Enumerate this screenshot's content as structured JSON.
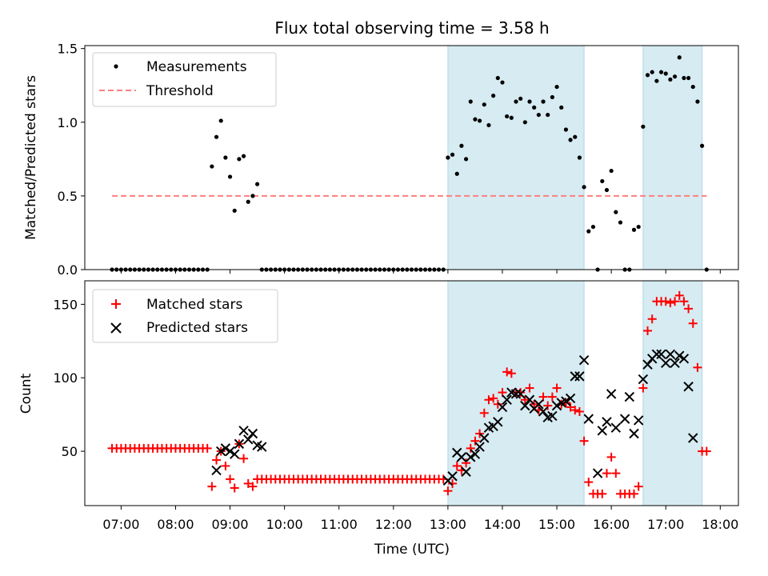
{
  "figure_title": "Flux total observing time = 3.58 h",
  "colors": {
    "measurement": "#000000",
    "threshold": "#ff7f7f",
    "matched": "#ff0000",
    "predicted": "#000000",
    "span_fill": "#add8e6"
  },
  "chart_data": [
    {
      "type": "scatter",
      "name": "ratio",
      "xlabel": "",
      "ylabel": "Matched/Predicted stars",
      "xlim": [
        "06:20",
        "18:20"
      ],
      "ylim": [
        0,
        1.52
      ],
      "yticks": [
        "0.0",
        "0.5",
        "1.0",
        "1.5"
      ],
      "ytick_values": [
        0,
        0.5,
        1.0,
        1.5
      ],
      "legend": {
        "placement": "top-left",
        "entries": [
          "Measurements",
          "Threshold"
        ]
      },
      "threshold": {
        "label": "Threshold",
        "value": 0.5,
        "from": "06:50",
        "to": "17:45"
      },
      "shaded_spans": [
        [
          "13:00",
          "15:30"
        ],
        [
          "16:35",
          "17:40"
        ]
      ],
      "series": [
        {
          "name": "Measurements",
          "x": [
            "06:50",
            "06:55",
            "07:00",
            "07:05",
            "07:10",
            "07:15",
            "07:20",
            "07:25",
            "07:30",
            "07:35",
            "07:40",
            "07:45",
            "07:50",
            "07:55",
            "08:00",
            "08:05",
            "08:10",
            "08:15",
            "08:20",
            "08:25",
            "08:30",
            "08:35",
            "08:40",
            "08:45",
            "08:50",
            "08:55",
            "09:00",
            "09:05",
            "09:10",
            "09:15",
            "09:20",
            "09:25",
            "09:30",
            "09:35",
            "09:40",
            "09:45",
            "09:50",
            "09:55",
            "10:00",
            "10:05",
            "10:10",
            "10:15",
            "10:20",
            "10:25",
            "10:30",
            "10:35",
            "10:40",
            "10:45",
            "10:50",
            "10:55",
            "11:00",
            "11:05",
            "11:10",
            "11:15",
            "11:20",
            "11:25",
            "11:30",
            "11:35",
            "11:40",
            "11:45",
            "11:50",
            "11:55",
            "12:00",
            "12:05",
            "12:10",
            "12:15",
            "12:20",
            "12:25",
            "12:30",
            "12:35",
            "12:40",
            "12:45",
            "12:50",
            "12:55",
            "13:00",
            "13:05",
            "13:10",
            "13:15",
            "13:20",
            "13:25",
            "13:30",
            "13:35",
            "13:40",
            "13:45",
            "13:50",
            "13:55",
            "14:00",
            "14:05",
            "14:10",
            "14:15",
            "14:20",
            "14:25",
            "14:30",
            "14:35",
            "14:40",
            "14:45",
            "14:50",
            "14:55",
            "15:00",
            "15:05",
            "15:10",
            "15:15",
            "15:20",
            "15:25",
            "15:30",
            "15:35",
            "15:40",
            "15:45",
            "15:50",
            "15:55",
            "16:00",
            "16:05",
            "16:10",
            "16:15",
            "16:20",
            "16:25",
            "16:30",
            "16:35",
            "16:40",
            "16:45",
            "16:50",
            "16:55",
            "17:00",
            "17:05",
            "17:10",
            "17:15",
            "17:20",
            "17:25",
            "17:30",
            "17:35",
            "17:40",
            "17:45"
          ],
          "y": [
            0,
            0,
            0,
            0,
            0,
            0,
            0,
            0,
            0,
            0,
            0,
            0,
            0,
            0,
            0,
            0,
            0,
            0,
            0,
            0,
            0,
            0,
            0.7,
            0.9,
            1.01,
            0.76,
            0.63,
            0.4,
            0.75,
            0.77,
            0.46,
            0.5,
            0.58,
            0,
            0,
            0,
            0,
            0,
            0,
            0,
            0,
            0,
            0,
            0,
            0,
            0,
            0,
            0,
            0,
            0,
            0,
            0,
            0,
            0,
            0,
            0,
            0,
            0,
            0,
            0,
            0,
            0,
            0,
            0,
            0,
            0,
            0,
            0,
            0,
            0,
            0,
            0,
            0,
            0,
            0.76,
            0.78,
            0.65,
            0.84,
            0.75,
            1.14,
            1.02,
            1.01,
            1.12,
            0.98,
            1.18,
            1.3,
            1.27,
            1.04,
            1.03,
            1.14,
            1.16,
            1.0,
            1.14,
            1.1,
            1.05,
            1.14,
            1.05,
            1.17,
            1.24,
            1.1,
            0.95,
            0.88,
            0.9,
            0.76,
            0.56,
            0.26,
            0.29,
            0,
            0.6,
            0.54,
            0.67,
            0.39,
            0.32,
            0,
            0,
            0.27,
            0.29,
            0.97,
            1.32,
            1.34,
            1.28,
            1.34,
            1.33,
            1.29,
            1.31,
            1.44,
            1.3,
            1.3,
            1.24,
            1.14,
            0.84,
            0
          ]
        }
      ]
    },
    {
      "type": "scatter",
      "name": "counts",
      "xlabel": "Time (UTC)",
      "ylabel": "Count",
      "xlim": [
        "06:20",
        "18:20"
      ],
      "ylim": [
        13,
        166
      ],
      "xticks": [
        "07:00",
        "08:00",
        "09:00",
        "10:00",
        "11:00",
        "12:00",
        "13:00",
        "14:00",
        "15:00",
        "16:00",
        "17:00",
        "18:00"
      ],
      "yticks": [
        "50",
        "100",
        "150"
      ],
      "ytick_values": [
        50,
        100,
        150
      ],
      "legend": {
        "placement": "top-left",
        "entries": [
          "Matched stars",
          "Predicted stars"
        ]
      },
      "shaded_spans": [
        [
          "13:00",
          "15:30"
        ],
        [
          "16:35",
          "17:40"
        ]
      ],
      "series": [
        {
          "name": "Matched stars",
          "marker": "plus",
          "x": [
            "06:50",
            "06:55",
            "07:00",
            "07:05",
            "07:10",
            "07:15",
            "07:20",
            "07:25",
            "07:30",
            "07:35",
            "07:40",
            "07:45",
            "07:50",
            "07:55",
            "08:00",
            "08:05",
            "08:10",
            "08:15",
            "08:20",
            "08:25",
            "08:30",
            "08:35",
            "08:40",
            "08:45",
            "08:50",
            "08:55",
            "09:00",
            "09:05",
            "09:10",
            "09:15",
            "09:20",
            "09:25",
            "09:30",
            "09:35",
            "09:40",
            "09:45",
            "09:50",
            "09:55",
            "10:00",
            "10:05",
            "10:10",
            "10:15",
            "10:20",
            "10:25",
            "10:30",
            "10:35",
            "10:40",
            "10:45",
            "10:50",
            "10:55",
            "11:00",
            "11:05",
            "11:10",
            "11:15",
            "11:20",
            "11:25",
            "11:30",
            "11:35",
            "11:40",
            "11:45",
            "11:50",
            "11:55",
            "12:00",
            "12:05",
            "12:10",
            "12:15",
            "12:20",
            "12:25",
            "12:30",
            "12:35",
            "12:40",
            "12:45",
            "12:50",
            "12:55",
            "13:00",
            "13:05",
            "13:10",
            "13:15",
            "13:20",
            "13:25",
            "13:30",
            "13:35",
            "13:40",
            "13:45",
            "13:50",
            "13:55",
            "14:00",
            "14:05",
            "14:10",
            "14:15",
            "14:20",
            "14:25",
            "14:30",
            "14:35",
            "14:40",
            "14:45",
            "14:50",
            "14:55",
            "15:00",
            "15:05",
            "15:10",
            "15:15",
            "15:20",
            "15:25",
            "15:30",
            "15:35",
            "15:40",
            "15:45",
            "15:50",
            "15:55",
            "16:00",
            "16:05",
            "16:10",
            "16:15",
            "16:20",
            "16:25",
            "16:30",
            "16:35",
            "16:40",
            "16:45",
            "16:50",
            "16:55",
            "17:00",
            "17:05",
            "17:10",
            "17:15",
            "17:20",
            "17:25",
            "17:30",
            "17:35",
            "17:40",
            "17:45"
          ],
          "y": [
            52,
            52,
            52,
            52,
            52,
            52,
            52,
            52,
            52,
            52,
            52,
            52,
            52,
            52,
            52,
            52,
            52,
            52,
            52,
            52,
            52,
            52,
            26,
            44,
            50,
            40,
            31,
            25,
            55,
            45,
            28,
            26,
            31,
            31,
            31,
            31,
            31,
            31,
            31,
            31,
            31,
            31,
            31,
            31,
            31,
            31,
            31,
            31,
            31,
            31,
            31,
            31,
            31,
            31,
            31,
            31,
            31,
            31,
            31,
            31,
            31,
            31,
            31,
            31,
            31,
            31,
            31,
            31,
            31,
            31,
            31,
            31,
            31,
            31,
            23,
            28,
            40,
            37,
            42,
            52,
            57,
            62,
            76,
            85,
            86,
            82,
            90,
            104,
            103,
            90,
            90,
            85,
            93,
            82,
            78,
            87,
            81,
            87,
            93,
            82,
            83,
            80,
            78,
            77,
            57,
            29,
            21,
            21,
            21,
            35,
            46,
            35,
            21,
            21,
            21,
            21,
            26,
            93,
            132,
            140,
            152,
            152,
            152,
            151,
            152,
            156,
            152,
            147,
            137,
            107,
            50,
            50
          ]
        },
        {
          "name": "Predicted stars",
          "marker": "x",
          "x": [
            "08:45",
            "08:50",
            "08:55",
            "09:00",
            "09:05",
            "09:10",
            "09:15",
            "09:20",
            "09:25",
            "09:30",
            "09:35",
            "13:00",
            "13:05",
            "13:10",
            "13:15",
            "13:20",
            "13:25",
            "13:30",
            "13:35",
            "13:40",
            "13:45",
            "13:50",
            "13:55",
            "14:00",
            "14:05",
            "14:10",
            "14:15",
            "14:20",
            "14:25",
            "14:30",
            "14:35",
            "14:40",
            "14:45",
            "14:50",
            "14:55",
            "15:00",
            "15:05",
            "15:10",
            "15:15",
            "15:20",
            "15:25",
            "15:30",
            "15:35",
            "15:40",
            "15:45",
            "15:50",
            "15:55",
            "16:00",
            "16:05",
            "16:10",
            "16:15",
            "16:20",
            "16:25",
            "16:30",
            "16:35",
            "16:40",
            "16:45",
            "16:50",
            "16:55",
            "17:00",
            "17:05",
            "17:10",
            "17:15",
            "17:20",
            "17:25",
            "17:30",
            "17:35",
            "17:40",
            "17:45"
          ],
          "y": [
            37,
            50,
            52,
            50,
            48,
            55,
            64,
            58,
            62,
            54,
            53,
            30,
            33,
            49,
            46,
            36,
            46,
            48,
            53,
            59,
            66,
            67,
            70,
            80,
            85,
            90,
            89,
            89,
            81,
            85,
            79,
            82,
            77,
            73,
            74,
            81,
            83,
            84,
            86,
            101,
            101,
            112,
            72,
            null,
            35,
            64,
            70,
            89,
            66,
            null,
            72,
            87,
            62,
            71,
            99,
            109,
            113,
            116,
            116,
            110,
            116,
            110,
            115,
            113,
            94,
            59,
            null,
            null,
            null
          ]
        }
      ]
    }
  ]
}
